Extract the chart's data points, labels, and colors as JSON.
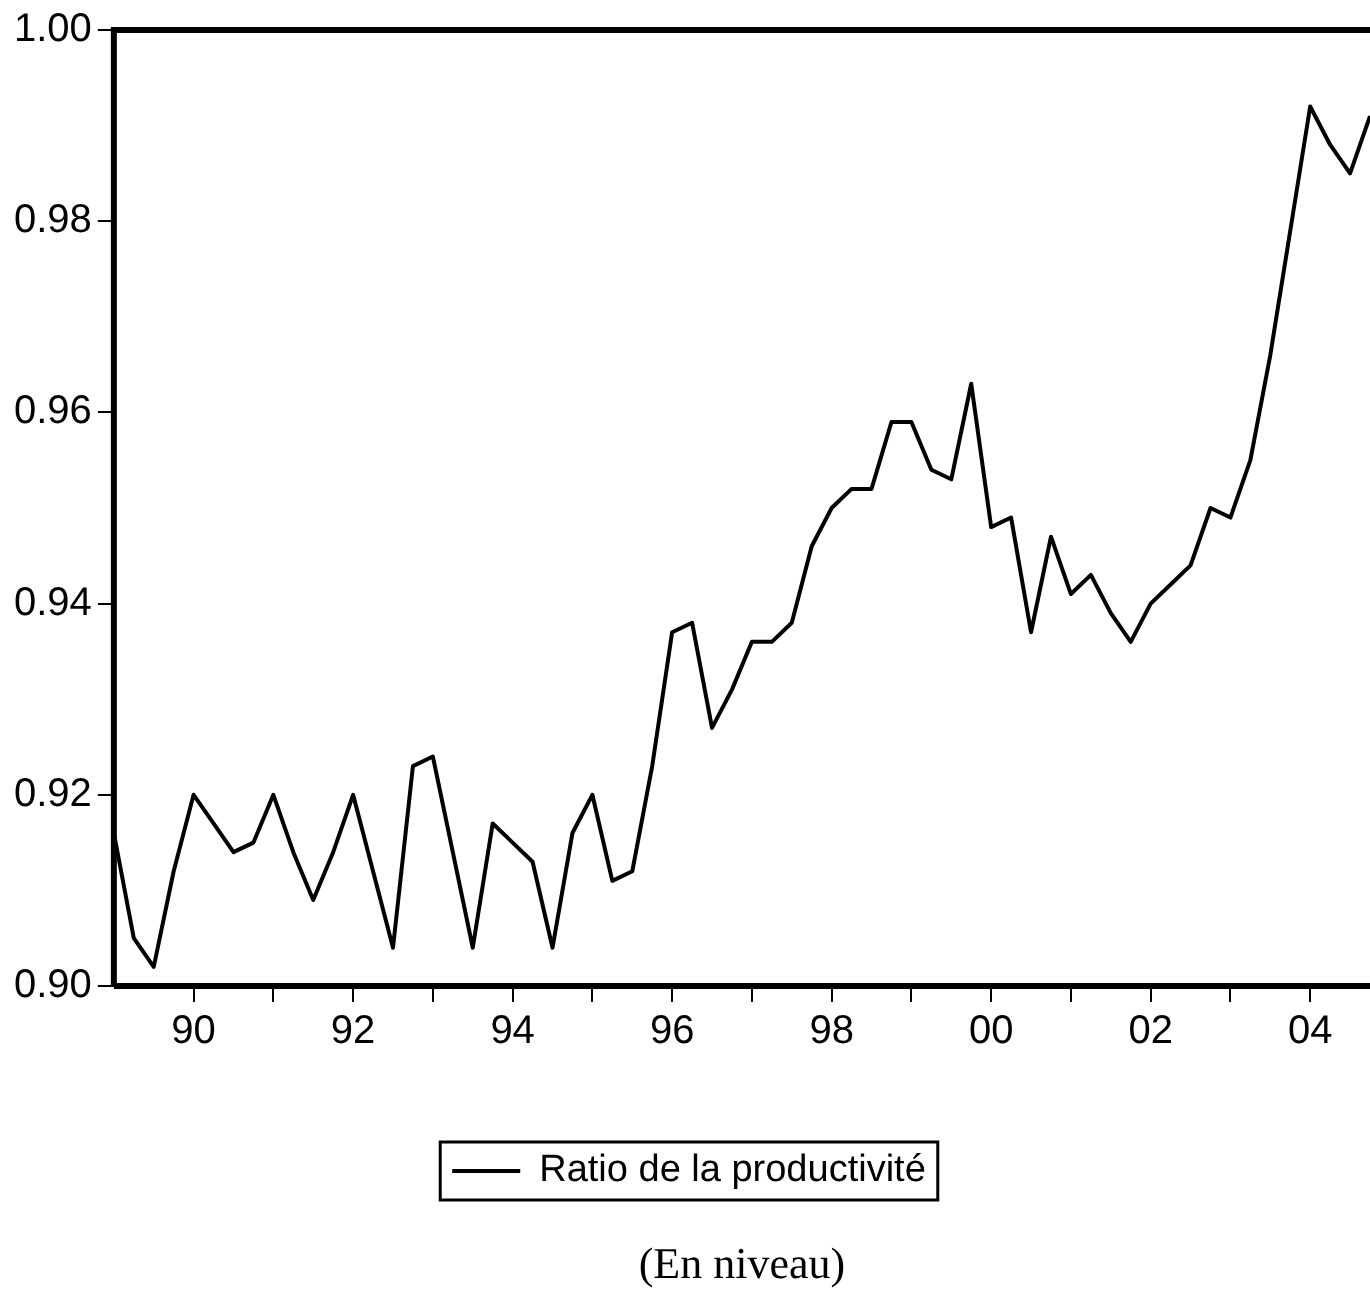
{
  "chart_data": {
    "type": "line",
    "annotations": [
      "(En niveau)"
    ],
    "x": [
      1989,
      1989.25,
      1989.5,
      1989.75,
      1990,
      1990.25,
      1990.5,
      1990.75,
      1991,
      1991.25,
      1991.5,
      1991.75,
      1992,
      1992.25,
      1992.5,
      1992.75,
      1993,
      1993.25,
      1993.5,
      1993.75,
      1994,
      1994.25,
      1994.5,
      1994.75,
      1995,
      1995.25,
      1995.5,
      1995.75,
      1996,
      1996.25,
      1996.5,
      1996.75,
      1997,
      1997.25,
      1997.5,
      1997.75,
      1998,
      1998.25,
      1998.5,
      1998.75,
      1999,
      1999.25,
      1999.5,
      1999.75,
      2000,
      2000.25,
      2000.5,
      2000.75,
      2001,
      2001.25,
      2001.5,
      2001.75,
      2002,
      2002.25,
      2002.5,
      2002.75,
      2003,
      2003.25,
      2003.5,
      2003.75,
      2004,
      2004.25,
      2004.5,
      2004.75
    ],
    "series": [
      {
        "name": "Ratio de la productivité",
        "color": "#000000",
        "values": [
          0.916,
          0.905,
          0.902,
          0.912,
          0.92,
          0.917,
          0.914,
          0.915,
          0.92,
          0.914,
          0.909,
          0.914,
          0.92,
          0.912,
          0.904,
          0.923,
          0.924,
          0.914,
          0.904,
          0.917,
          0.915,
          0.913,
          0.904,
          0.916,
          0.92,
          0.911,
          0.912,
          0.923,
          0.937,
          0.938,
          0.927,
          0.931,
          0.936,
          0.936,
          0.938,
          0.946,
          0.95,
          0.952,
          0.952,
          0.959,
          0.959,
          0.954,
          0.953,
          0.963,
          0.948,
          0.949,
          0.937,
          0.947,
          0.941,
          0.943,
          0.939,
          0.936,
          0.94,
          0.942,
          0.944,
          0.95,
          0.949,
          0.955,
          0.966,
          0.979,
          0.992,
          0.988,
          0.985,
          0.991
        ]
      }
    ],
    "xlim": [
      1989,
      2004.75
    ],
    "xticks": [
      {
        "value": 1990,
        "label": "90"
      },
      {
        "value": 1991,
        "label": null
      },
      {
        "value": 1992,
        "label": "92"
      },
      {
        "value": 1993,
        "label": null
      },
      {
        "value": 1994,
        "label": "94"
      },
      {
        "value": 1995,
        "label": null
      },
      {
        "value": 1996,
        "label": "96"
      },
      {
        "value": 1997,
        "label": null
      },
      {
        "value": 1998,
        "label": "98"
      },
      {
        "value": 1999,
        "label": null
      },
      {
        "value": 2000,
        "label": "00"
      },
      {
        "value": 2001,
        "label": null
      },
      {
        "value": 2002,
        "label": "02"
      },
      {
        "value": 2003,
        "label": null
      },
      {
        "value": 2004,
        "label": "04"
      }
    ],
    "ylim": [
      0.9,
      1.0
    ],
    "yticks": [
      {
        "value": 0.9,
        "label": "0.90"
      },
      {
        "value": 0.92,
        "label": "0.92"
      },
      {
        "value": 0.94,
        "label": "0.94"
      },
      {
        "value": 0.96,
        "label": "0.96"
      },
      {
        "value": 0.98,
        "label": "0.98"
      },
      {
        "value": 1.0,
        "label": "1.00"
      }
    ],
    "grid": false,
    "legend": "bottom",
    "line_style": "solid",
    "marker": "none"
  }
}
